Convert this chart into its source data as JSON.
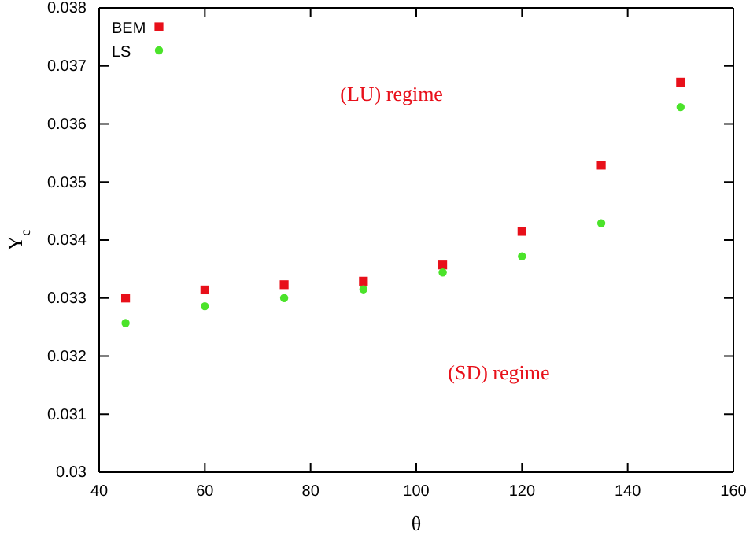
{
  "chart_data": {
    "type": "scatter",
    "xlabel": "θ",
    "ylabel": "Y$_{c}$",
    "x": [
      45,
      60,
      75,
      90,
      105,
      120,
      135,
      150
    ],
    "series": [
      {
        "name": "BEM",
        "color": "#e8101a",
        "marker": "square",
        "values": [
          0.033,
          0.03314,
          0.03323,
          0.03329,
          0.03357,
          0.03415,
          0.03529,
          0.03672
        ]
      },
      {
        "name": "LS",
        "color": "#4be32a",
        "marker": "circle",
        "values": [
          0.03257,
          0.03286,
          0.033,
          0.03315,
          0.03344,
          0.03372,
          0.03429,
          0.03629
        ]
      }
    ],
    "xlim": [
      40,
      160
    ],
    "xticks": [
      40,
      60,
      80,
      100,
      120,
      140,
      160
    ],
    "ylim": [
      0.03,
      0.038
    ],
    "yticks": [
      0.03,
      0.031,
      0.032,
      0.033,
      0.034,
      0.035,
      0.036,
      0.037,
      0.038
    ],
    "annotations": [
      "(LU) regime",
      "(SD) regime"
    ],
    "legend": "top left",
    "grid": false
  }
}
